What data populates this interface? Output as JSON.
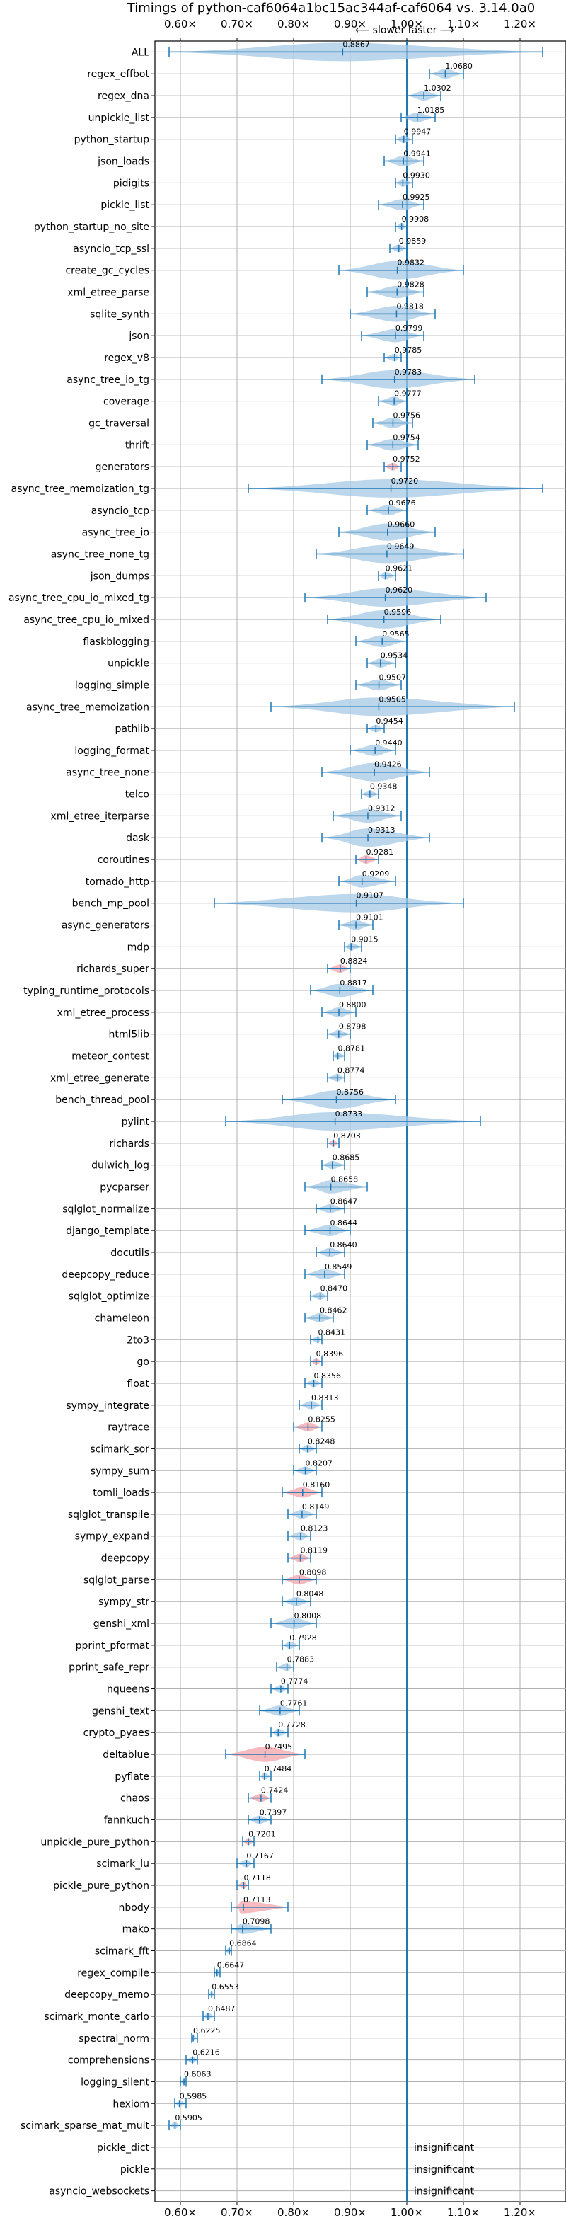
{
  "chart_data": {
    "type": "violin",
    "title": "Timings of python-caf6064a1bc15ac344af-caf6064 vs. 3.14.0a0",
    "subtitle": "⟵ slower   faster ⟶",
    "xlim": [
      0.55,
      1.25
    ],
    "xticks": [
      "0.60×",
      "0.70×",
      "0.80×",
      "0.90×",
      "1.00×",
      "1.10×",
      "1.20×"
    ],
    "xtick_values": [
      0.6,
      0.7,
      0.8,
      0.9,
      1.0,
      1.1,
      1.2
    ],
    "reference_line": 1.0,
    "grid": true,
    "colors": {
      "faster": "#1f77b4",
      "violin": "#a6c8e6",
      "slower": "#f4a3a8"
    },
    "insignificant_text": "insignificant",
    "rows": [
      {
        "name": "ALL",
        "value": 0.8867,
        "label": "0.8867",
        "low": 0.58,
        "high": 1.24
      },
      {
        "name": "regex_effbot",
        "value": 1.068,
        "label": "1.0680",
        "low": 1.04,
        "high": 1.1
      },
      {
        "name": "regex_dna",
        "value": 1.0302,
        "label": "1.0302",
        "low": 1.0,
        "high": 1.06
      },
      {
        "name": "unpickle_list",
        "value": 1.0185,
        "label": "1.0185",
        "low": 0.99,
        "high": 1.05
      },
      {
        "name": "python_startup",
        "value": 0.9947,
        "label": "0.9947",
        "low": 0.98,
        "high": 1.01
      },
      {
        "name": "json_loads",
        "value": 0.9941,
        "label": "0.9941",
        "low": 0.96,
        "high": 1.03
      },
      {
        "name": "pidigits",
        "value": 0.993,
        "label": "0.9930",
        "low": 0.98,
        "high": 1.01
      },
      {
        "name": "pickle_list",
        "value": 0.9925,
        "label": "0.9925",
        "low": 0.95,
        "high": 1.03
      },
      {
        "name": "python_startup_no_site",
        "value": 0.9908,
        "label": "0.9908",
        "low": 0.98,
        "high": 1.0
      },
      {
        "name": "asyncio_tcp_ssl",
        "value": 0.9859,
        "label": "0.9859",
        "low": 0.97,
        "high": 1.0
      },
      {
        "name": "create_gc_cycles",
        "value": 0.9832,
        "label": "0.9832",
        "low": 0.88,
        "high": 1.1
      },
      {
        "name": "xml_etree_parse",
        "value": 0.9828,
        "label": "0.9828",
        "low": 0.93,
        "high": 1.03
      },
      {
        "name": "sqlite_synth",
        "value": 0.9818,
        "label": "0.9818",
        "low": 0.9,
        "high": 1.05
      },
      {
        "name": "json",
        "value": 0.9799,
        "label": "0.9799",
        "low": 0.92,
        "high": 1.03
      },
      {
        "name": "regex_v8",
        "value": 0.9785,
        "label": "0.9785",
        "low": 0.96,
        "high": 0.99
      },
      {
        "name": "async_tree_io_tg",
        "value": 0.9783,
        "label": "0.9783",
        "low": 0.85,
        "high": 1.12
      },
      {
        "name": "coverage",
        "value": 0.9777,
        "label": "0.9777",
        "low": 0.95,
        "high": 1.0
      },
      {
        "name": "gc_traversal",
        "value": 0.9756,
        "label": "0.9756",
        "low": 0.94,
        "high": 1.01
      },
      {
        "name": "thrift",
        "value": 0.9754,
        "label": "0.9754",
        "low": 0.93,
        "high": 1.02
      },
      {
        "name": "generators",
        "value": 0.9752,
        "label": "0.9752",
        "low": 0.96,
        "high": 0.99,
        "slower": true
      },
      {
        "name": "async_tree_memoization_tg",
        "value": 0.972,
        "label": "0.9720",
        "low": 0.72,
        "high": 1.24
      },
      {
        "name": "asyncio_tcp",
        "value": 0.9676,
        "label": "0.9676",
        "low": 0.93,
        "high": 1.0
      },
      {
        "name": "async_tree_io",
        "value": 0.966,
        "label": "0.9660",
        "low": 0.88,
        "high": 1.05
      },
      {
        "name": "async_tree_none_tg",
        "value": 0.9649,
        "label": "0.9649",
        "low": 0.84,
        "high": 1.1
      },
      {
        "name": "json_dumps",
        "value": 0.9621,
        "label": "0.9621",
        "low": 0.95,
        "high": 0.98
      },
      {
        "name": "async_tree_cpu_io_mixed_tg",
        "value": 0.962,
        "label": "0.9620",
        "low": 0.82,
        "high": 1.14
      },
      {
        "name": "async_tree_cpu_io_mixed",
        "value": 0.9596,
        "label": "0.9596",
        "low": 0.86,
        "high": 1.06
      },
      {
        "name": "flaskblogging",
        "value": 0.9565,
        "label": "0.9565",
        "low": 0.91,
        "high": 1.0
      },
      {
        "name": "unpickle",
        "value": 0.9534,
        "label": "0.9534",
        "low": 0.93,
        "high": 0.98
      },
      {
        "name": "logging_simple",
        "value": 0.9507,
        "label": "0.9507",
        "low": 0.91,
        "high": 0.99
      },
      {
        "name": "async_tree_memoization",
        "value": 0.9505,
        "label": "0.9505",
        "low": 0.76,
        "high": 1.19
      },
      {
        "name": "pathlib",
        "value": 0.9454,
        "label": "0.9454",
        "low": 0.93,
        "high": 0.96
      },
      {
        "name": "logging_format",
        "value": 0.944,
        "label": "0.9440",
        "low": 0.9,
        "high": 0.98
      },
      {
        "name": "async_tree_none",
        "value": 0.9426,
        "label": "0.9426",
        "low": 0.85,
        "high": 1.04
      },
      {
        "name": "telco",
        "value": 0.9348,
        "label": "0.9348",
        "low": 0.92,
        "high": 0.95
      },
      {
        "name": "xml_etree_iterparse",
        "value": 0.9312,
        "label": "0.9312",
        "low": 0.87,
        "high": 0.99
      },
      {
        "name": "dask",
        "value": 0.9313,
        "label": "0.9313",
        "low": 0.85,
        "high": 1.04
      },
      {
        "name": "coroutines",
        "value": 0.9281,
        "label": "0.9281",
        "low": 0.91,
        "high": 0.95,
        "slower": true
      },
      {
        "name": "tornado_http",
        "value": 0.9209,
        "label": "0.9209",
        "low": 0.88,
        "high": 0.98
      },
      {
        "name": "bench_mp_pool",
        "value": 0.9107,
        "label": "0.9107",
        "low": 0.66,
        "high": 1.1
      },
      {
        "name": "async_generators",
        "value": 0.9101,
        "label": "0.9101",
        "low": 0.88,
        "high": 0.94
      },
      {
        "name": "mdp",
        "value": 0.9015,
        "label": "0.9015",
        "low": 0.89,
        "high": 0.92
      },
      {
        "name": "richards_super",
        "value": 0.8824,
        "label": "0.8824",
        "low": 0.86,
        "high": 0.9,
        "slower": true
      },
      {
        "name": "typing_runtime_protocols",
        "value": 0.8817,
        "label": "0.8817",
        "low": 0.83,
        "high": 0.94
      },
      {
        "name": "xml_etree_process",
        "value": 0.88,
        "label": "0.8800",
        "low": 0.85,
        "high": 0.91
      },
      {
        "name": "html5lib",
        "value": 0.8798,
        "label": "0.8798",
        "low": 0.86,
        "high": 0.9
      },
      {
        "name": "meteor_contest",
        "value": 0.8781,
        "label": "0.8781",
        "low": 0.87,
        "high": 0.89
      },
      {
        "name": "xml_etree_generate",
        "value": 0.8774,
        "label": "0.8774",
        "low": 0.86,
        "high": 0.89
      },
      {
        "name": "bench_thread_pool",
        "value": 0.8756,
        "label": "0.8756",
        "low": 0.78,
        "high": 0.98
      },
      {
        "name": "pylint",
        "value": 0.8733,
        "label": "0.8733",
        "low": 0.68,
        "high": 1.13
      },
      {
        "name": "richards",
        "value": 0.8703,
        "label": "0.8703",
        "low": 0.86,
        "high": 0.88,
        "slower": true
      },
      {
        "name": "dulwich_log",
        "value": 0.8685,
        "label": "0.8685",
        "low": 0.85,
        "high": 0.89
      },
      {
        "name": "pycparser",
        "value": 0.8658,
        "label": "0.8658",
        "low": 0.82,
        "high": 0.93
      },
      {
        "name": "sqlglot_normalize",
        "value": 0.8647,
        "label": "0.8647",
        "low": 0.84,
        "high": 0.89
      },
      {
        "name": "django_template",
        "value": 0.8644,
        "label": "0.8644",
        "low": 0.82,
        "high": 0.9
      },
      {
        "name": "docutils",
        "value": 0.864,
        "label": "0.8640",
        "low": 0.84,
        "high": 0.89
      },
      {
        "name": "deepcopy_reduce",
        "value": 0.8549,
        "label": "0.8549",
        "low": 0.82,
        "high": 0.89
      },
      {
        "name": "sqlglot_optimize",
        "value": 0.847,
        "label": "0.8470",
        "low": 0.83,
        "high": 0.86
      },
      {
        "name": "chameleon",
        "value": 0.8462,
        "label": "0.8462",
        "low": 0.82,
        "high": 0.87
      },
      {
        "name": "2to3",
        "value": 0.8431,
        "label": "0.8431",
        "low": 0.83,
        "high": 0.85
      },
      {
        "name": "go",
        "value": 0.8396,
        "label": "0.8396",
        "low": 0.83,
        "high": 0.85,
        "slower": true
      },
      {
        "name": "float",
        "value": 0.8356,
        "label": "0.8356",
        "low": 0.82,
        "high": 0.85
      },
      {
        "name": "sympy_integrate",
        "value": 0.8313,
        "label": "0.8313",
        "low": 0.81,
        "high": 0.85
      },
      {
        "name": "raytrace",
        "value": 0.8255,
        "label": "0.8255",
        "low": 0.8,
        "high": 0.85,
        "slower": true
      },
      {
        "name": "scimark_sor",
        "value": 0.8248,
        "label": "0.8248",
        "low": 0.81,
        "high": 0.84
      },
      {
        "name": "sympy_sum",
        "value": 0.8207,
        "label": "0.8207",
        "low": 0.8,
        "high": 0.84
      },
      {
        "name": "tomli_loads",
        "value": 0.816,
        "label": "0.8160",
        "low": 0.78,
        "high": 0.85,
        "slower": true
      },
      {
        "name": "sqlglot_transpile",
        "value": 0.8149,
        "label": "0.8149",
        "low": 0.79,
        "high": 0.84
      },
      {
        "name": "sympy_expand",
        "value": 0.8123,
        "label": "0.8123",
        "low": 0.79,
        "high": 0.83
      },
      {
        "name": "deepcopy",
        "value": 0.8119,
        "label": "0.8119",
        "low": 0.79,
        "high": 0.83,
        "slower": true
      },
      {
        "name": "sqlglot_parse",
        "value": 0.8098,
        "label": "0.8098",
        "low": 0.78,
        "high": 0.84,
        "slower": true
      },
      {
        "name": "sympy_str",
        "value": 0.8048,
        "label": "0.8048",
        "low": 0.78,
        "high": 0.83
      },
      {
        "name": "genshi_xml",
        "value": 0.8008,
        "label": "0.8008",
        "low": 0.76,
        "high": 0.84
      },
      {
        "name": "pprint_pformat",
        "value": 0.7928,
        "label": "0.7928",
        "low": 0.78,
        "high": 0.81
      },
      {
        "name": "pprint_safe_repr",
        "value": 0.7883,
        "label": "0.7883",
        "low": 0.77,
        "high": 0.8
      },
      {
        "name": "nqueens",
        "value": 0.7774,
        "label": "0.7774",
        "low": 0.76,
        "high": 0.79
      },
      {
        "name": "genshi_text",
        "value": 0.7761,
        "label": "0.7761",
        "low": 0.74,
        "high": 0.81
      },
      {
        "name": "crypto_pyaes",
        "value": 0.7728,
        "label": "0.7728",
        "low": 0.76,
        "high": 0.79
      },
      {
        "name": "deltablue",
        "value": 0.7495,
        "label": "0.7495",
        "low": 0.68,
        "high": 0.82,
        "slower": true
      },
      {
        "name": "pyflate",
        "value": 0.7484,
        "label": "0.7484",
        "low": 0.74,
        "high": 0.76
      },
      {
        "name": "chaos",
        "value": 0.7424,
        "label": "0.7424",
        "low": 0.72,
        "high": 0.76,
        "slower": true
      },
      {
        "name": "fannkuch",
        "value": 0.7397,
        "label": "0.7397",
        "low": 0.72,
        "high": 0.76
      },
      {
        "name": "unpickle_pure_python",
        "value": 0.7201,
        "label": "0.7201",
        "low": 0.71,
        "high": 0.73,
        "slower": true
      },
      {
        "name": "scimark_lu",
        "value": 0.7167,
        "label": "0.7167",
        "low": 0.7,
        "high": 0.73
      },
      {
        "name": "pickle_pure_python",
        "value": 0.7118,
        "label": "0.7118",
        "low": 0.7,
        "high": 0.72,
        "slower": true
      },
      {
        "name": "nbody",
        "value": 0.7113,
        "label": "0.7113",
        "low": 0.69,
        "high": 0.79,
        "slower": true
      },
      {
        "name": "mako",
        "value": 0.7098,
        "label": "0.7098",
        "low": 0.69,
        "high": 0.76
      },
      {
        "name": "scimark_fft",
        "value": 0.6864,
        "label": "0.6864",
        "low": 0.68,
        "high": 0.69
      },
      {
        "name": "regex_compile",
        "value": 0.6647,
        "label": "0.6647",
        "low": 0.66,
        "high": 0.67
      },
      {
        "name": "deepcopy_memo",
        "value": 0.6553,
        "label": "0.6553",
        "low": 0.65,
        "high": 0.66
      },
      {
        "name": "scimark_monte_carlo",
        "value": 0.6487,
        "label": "0.6487",
        "low": 0.64,
        "high": 0.66
      },
      {
        "name": "spectral_norm",
        "value": 0.6225,
        "label": "0.6225",
        "low": 0.62,
        "high": 0.63
      },
      {
        "name": "comprehensions",
        "value": 0.6216,
        "label": "0.6216",
        "low": 0.61,
        "high": 0.63
      },
      {
        "name": "logging_silent",
        "value": 0.6063,
        "label": "0.6063",
        "low": 0.6,
        "high": 0.61
      },
      {
        "name": "hexiom",
        "value": 0.5985,
        "label": "0.5985",
        "low": 0.59,
        "high": 0.61
      },
      {
        "name": "scimark_sparse_mat_mult",
        "value": 0.5905,
        "label": "0.5905",
        "low": 0.58,
        "high": 0.6
      },
      {
        "name": "pickle_dict",
        "insignificant": true
      },
      {
        "name": "pickle",
        "insignificant": true
      },
      {
        "name": "asyncio_websockets",
        "insignificant": true
      }
    ]
  }
}
